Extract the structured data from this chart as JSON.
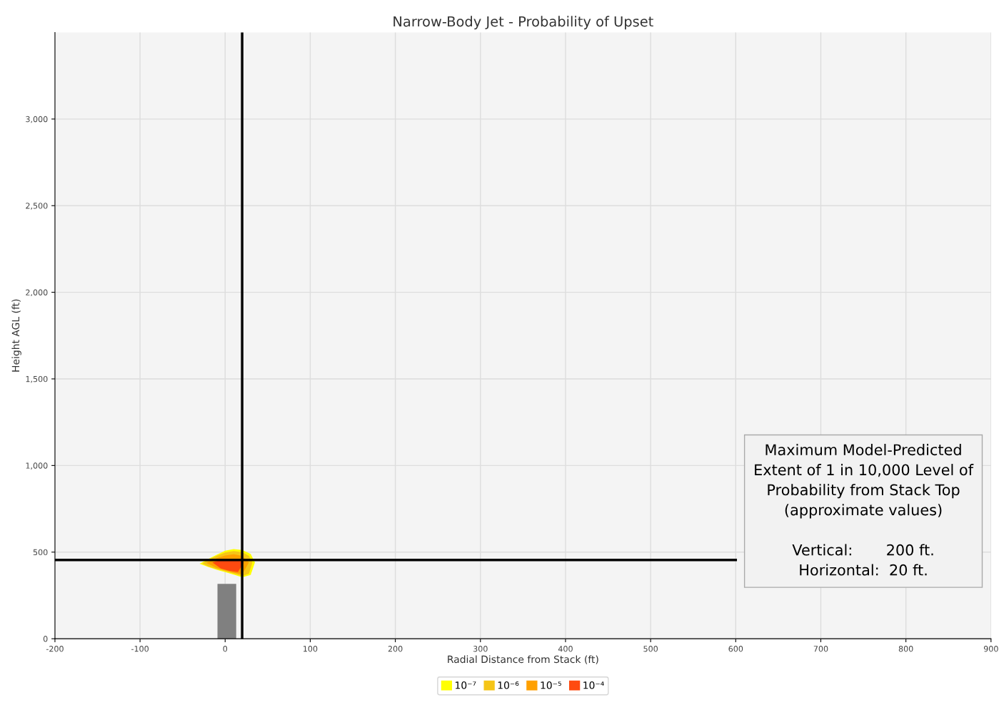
{
  "chart_data": {
    "type": "area",
    "title": "Narrow-Body Jet - Probability of Upset",
    "xlabel": "Radial Distance from Stack (ft)",
    "ylabel": "Height AGL (ft)",
    "xlim": [
      -200,
      900
    ],
    "xticks": [
      -200,
      -100,
      0,
      100,
      200,
      300,
      400,
      500,
      600,
      700,
      800,
      900
    ],
    "ylim": [
      0,
      3500
    ],
    "yticks": [
      0,
      500,
      {
        "value": 1000,
        "label": "1,000"
      },
      {
        "value": 1500,
        "label": "1,500"
      },
      {
        "value": 2000,
        "label": "2,000"
      },
      {
        "value": 2500,
        "label": "2,500"
      },
      {
        "value": 3000,
        "label": "3,000"
      }
    ],
    "grid": true,
    "legend": "bottom",
    "series": [
      {
        "type": "bar",
        "color": "#808080",
        "x": [
          2
        ],
        "values": [
          317
        ]
      },
      {
        "name": "10⁻⁷",
        "color": "#ffff00",
        "x": [
          -30,
          -20,
          -10,
          0,
          10,
          20,
          30,
          35,
          30,
          20,
          10,
          0,
          -10,
          -20
        ],
        "values": [
          433,
          460,
          485,
          508,
          518,
          512,
          490,
          440,
          368,
          355,
          370,
          385,
          398,
          415
        ]
      },
      {
        "name": "10⁻⁶",
        "color": "#f5c518",
        "x": [
          -27,
          -20,
          -10,
          0,
          10,
          20,
          28,
          32,
          28,
          20,
          10,
          0,
          -10,
          -20
        ],
        "values": [
          435,
          455,
          478,
          498,
          506,
          500,
          478,
          440,
          375,
          362,
          376,
          390,
          402,
          418
        ]
      },
      {
        "name": "10⁻⁵",
        "color": "#ffa000",
        "x": [
          -22,
          -10,
          0,
          10,
          20,
          28,
          20,
          10,
          0,
          -10
        ],
        "values": [
          438,
          465,
          480,
          488,
          478,
          440,
          372,
          382,
          395,
          408
        ]
      },
      {
        "name": "10⁻⁴",
        "color": "#ff4a10",
        "x": [
          -15,
          -5,
          5,
          15,
          22,
          15,
          5,
          -5
        ],
        "values": [
          440,
          455,
          460,
          455,
          440,
          385,
          392,
          405
        ]
      }
    ],
    "ref_lines": [
      {
        "axis": "x",
        "value": 20,
        "color": "#000000"
      },
      {
        "axis": "y",
        "value": 455,
        "color": "#000000"
      }
    ],
    "annotations": [
      "Maximum Model-Predicted\nExtent of 1 in 10,000 Level of\nProbability from Stack Top\n(approximate values)\n\nVertical:       200 ft.\nHorizontal:  20 ft."
    ]
  }
}
